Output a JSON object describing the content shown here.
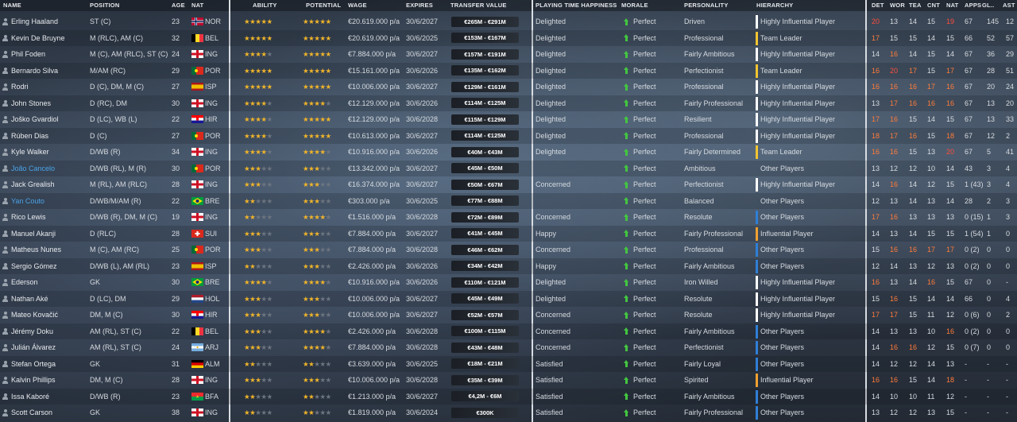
{
  "headers": {
    "name": "NAME",
    "position": "POSITION",
    "age": "AGE",
    "nat": "NAT",
    "ability": "ABILITY",
    "potential": "POTENTIAL",
    "wage": "WAGE",
    "expires": "EXPIRES",
    "transfer_value": "TRANSFER VALUE",
    "playing_time_happiness": "PLAYING TIME HAPPINESS",
    "morale": "MORALE",
    "personality": "PERSONALITY",
    "hierarchy": "HIERARCHY",
    "det": "DET",
    "wor": "WOR",
    "tea": "TEA",
    "cnt": "CNT",
    "nat2": "NAT",
    "apps": "APPS",
    "gls": "GL..",
    "ast": "AST"
  },
  "colors": {
    "star": "#f0b42a",
    "leader": "#f4c430",
    "highly_influential": "#ffffff",
    "influential": "#f0a030",
    "other": "#2f7fd6",
    "good_attr": "#ff7b3a",
    "great_attr": "#ff4e3d",
    "morale_arrow": "#43c640"
  },
  "players": [
    {
      "name": "Erling Haaland",
      "position": "ST (C)",
      "age": "23",
      "nat": "NOR",
      "flag": "nor",
      "ability": 5,
      "potential": 5,
      "wage": "€20.619.000 p/a",
      "expires": "30/6/2027",
      "tv": "€265M - €291M",
      "pth": "Delighted",
      "morale": "Perfect",
      "personality": "Driven",
      "hierarchy": "Highly Influential Player",
      "htype": "highly_influential",
      "det": "20",
      "wor": "13",
      "tea": "14",
      "cnt": "15",
      "nat2": "19",
      "apps": "67",
      "gls": "145",
      "ast": "12",
      "loan": false
    },
    {
      "name": "Kevin De Bruyne",
      "position": "M (RLC), AM (C)",
      "age": "32",
      "nat": "BEL",
      "flag": "bel",
      "ability": 5,
      "potential": 5,
      "wage": "€20.619.000 p/a",
      "expires": "30/6/2025",
      "tv": "€153M - €167M",
      "pth": "Delighted",
      "morale": "Perfect",
      "personality": "Professional",
      "hierarchy": "Team Leader",
      "htype": "leader",
      "det": "17",
      "wor": "15",
      "tea": "15",
      "cnt": "14",
      "nat2": "15",
      "apps": "66",
      "gls": "52",
      "ast": "57",
      "loan": false
    },
    {
      "name": "Phil Foden",
      "position": "M (C), AM (RLC), ST (C)",
      "age": "24",
      "nat": "ING",
      "flag": "eng",
      "ability": 4,
      "potential": 5,
      "wage": "€7.884.000 p/a",
      "expires": "30/6/2027",
      "tv": "€157M - €191M",
      "pth": "Delighted",
      "morale": "Perfect",
      "personality": "Fairly Ambitious",
      "hierarchy": "Highly Influential Player",
      "htype": "highly_influential",
      "det": "14",
      "wor": "16",
      "tea": "14",
      "cnt": "15",
      "nat2": "14",
      "apps": "67",
      "gls": "36",
      "ast": "29",
      "loan": false
    },
    {
      "name": "Bernardo Silva",
      "position": "M/AM (RC)",
      "age": "29",
      "nat": "POR",
      "flag": "por",
      "ability": 5,
      "potential": 5,
      "wage": "€15.161.000 p/a",
      "expires": "30/6/2026",
      "tv": "€135M - €162M",
      "pth": "Delighted",
      "morale": "Perfect",
      "personality": "Perfectionist",
      "hierarchy": "Team Leader",
      "htype": "leader",
      "det": "16",
      "wor": "20",
      "tea": "17",
      "cnt": "15",
      "nat2": "17",
      "apps": "67",
      "gls": "28",
      "ast": "51",
      "loan": false
    },
    {
      "name": "Rodri",
      "position": "D (C), DM, M (C)",
      "age": "27",
      "nat": "ISP",
      "flag": "esp",
      "ability": 5,
      "potential": 5,
      "wage": "€10.006.000 p/a",
      "expires": "30/6/2027",
      "tv": "€129M - €161M",
      "pth": "Delighted",
      "morale": "Perfect",
      "personality": "Professional",
      "hierarchy": "Highly Influential Player",
      "htype": "highly_influential",
      "det": "16",
      "wor": "16",
      "tea": "16",
      "cnt": "17",
      "nat2": "16",
      "apps": "67",
      "gls": "20",
      "ast": "24",
      "loan": false
    },
    {
      "name": "John Stones",
      "position": "D (RC), DM",
      "age": "30",
      "nat": "ING",
      "flag": "eng",
      "ability": 4,
      "potential": 4,
      "wage": "€12.129.000 p/a",
      "expires": "30/6/2026",
      "tv": "€114M - €125M",
      "pth": "Delighted",
      "morale": "Perfect",
      "personality": "Fairly Professional",
      "hierarchy": "Highly Influential Player",
      "htype": "highly_influential",
      "det": "13",
      "wor": "17",
      "tea": "16",
      "cnt": "16",
      "nat2": "16",
      "apps": "67",
      "gls": "13",
      "ast": "20",
      "loan": false
    },
    {
      "name": "Joško Gvardiol",
      "position": "D (LC), WB (L)",
      "age": "22",
      "nat": "HIR",
      "flag": "cro",
      "ability": 4,
      "potential": 5,
      "wage": "€12.129.000 p/a",
      "expires": "30/6/2028",
      "tv": "€115M - €129M",
      "pth": "Delighted",
      "morale": "Perfect",
      "personality": "Resilient",
      "hierarchy": "Highly Influential Player",
      "htype": "highly_influential",
      "det": "17",
      "wor": "16",
      "tea": "15",
      "cnt": "14",
      "nat2": "15",
      "apps": "67",
      "gls": "13",
      "ast": "33",
      "loan": false
    },
    {
      "name": "Rúben Dias",
      "position": "D (C)",
      "age": "27",
      "nat": "POR",
      "flag": "por",
      "ability": 4,
      "potential": 5,
      "wage": "€10.613.000 p/a",
      "expires": "30/6/2027",
      "tv": "€114M - €125M",
      "pth": "Delighted",
      "morale": "Perfect",
      "personality": "Professional",
      "hierarchy": "Highly Influential Player",
      "htype": "highly_influential",
      "det": "18",
      "wor": "17",
      "tea": "16",
      "cnt": "15",
      "nat2": "18",
      "apps": "67",
      "gls": "12",
      "ast": "2",
      "loan": false
    },
    {
      "name": "Kyle Walker",
      "position": "D/WB (R)",
      "age": "34",
      "nat": "ING",
      "flag": "eng",
      "ability": 4,
      "potential": 4,
      "wage": "€10.916.000 p/a",
      "expires": "30/6/2026",
      "tv": "€40M - €43M",
      "pth": "Delighted",
      "morale": "Perfect",
      "personality": "Fairly Determined",
      "hierarchy": "Team Leader",
      "htype": "leader",
      "det": "16",
      "wor": "16",
      "tea": "15",
      "cnt": "13",
      "nat2": "20",
      "apps": "67",
      "gls": "5",
      "ast": "41",
      "loan": false
    },
    {
      "name": "João Cancelo",
      "position": "D/WB (RL), M (R)",
      "age": "30",
      "nat": "POR",
      "flag": "por",
      "ability": 3,
      "potential": 3,
      "wage": "€13.342.000 p/a",
      "expires": "30/6/2027",
      "tv": "€45M - €50M",
      "pth": "",
      "morale": "Perfect",
      "personality": "Ambitious",
      "hierarchy": "Other Players",
      "htype": "none",
      "det": "13",
      "wor": "12",
      "tea": "12",
      "cnt": "10",
      "nat2": "14",
      "apps": "43",
      "gls": "3",
      "ast": "4",
      "loan": true
    },
    {
      "name": "Jack Grealish",
      "position": "M (RL), AM (RLC)",
      "age": "28",
      "nat": "ING",
      "flag": "eng",
      "ability": 3,
      "potential": 3,
      "wage": "€16.374.000 p/a",
      "expires": "30/6/2027",
      "tv": "€50M - €67M",
      "pth": "Concerned",
      "morale": "Perfect",
      "personality": "Perfectionist",
      "hierarchy": "Highly Influential Player",
      "htype": "highly_influential",
      "det": "14",
      "wor": "16",
      "tea": "14",
      "cnt": "12",
      "nat2": "15",
      "apps": "1 (43)",
      "gls": "3",
      "ast": "4",
      "loan": false
    },
    {
      "name": "Yan Couto",
      "position": "D/WB/M/AM (R)",
      "age": "22",
      "nat": "BRE",
      "flag": "bra",
      "ability": 2,
      "potential": 3,
      "wage": "€303.000 p/a",
      "expires": "30/6/2025",
      "tv": "€77M - €88M",
      "pth": "",
      "morale": "Perfect",
      "personality": "Balanced",
      "hierarchy": "Other Players",
      "htype": "none",
      "det": "12",
      "wor": "13",
      "tea": "14",
      "cnt": "13",
      "nat2": "14",
      "apps": "28",
      "gls": "2",
      "ast": "3",
      "loan": true
    },
    {
      "name": "Rico Lewis",
      "position": "D/WB (R), DM, M (C)",
      "age": "19",
      "nat": "ING",
      "flag": "eng",
      "ability": 2,
      "potential": 4,
      "wage": "€1.516.000 p/a",
      "expires": "30/6/2028",
      "tv": "€72M - €89M",
      "pth": "Concerned",
      "morale": "Perfect",
      "personality": "Resolute",
      "hierarchy": "Other Players",
      "htype": "other",
      "det": "17",
      "wor": "16",
      "tea": "13",
      "cnt": "13",
      "nat2": "13",
      "apps": "0 (15)",
      "gls": "1",
      "ast": "3",
      "loan": false
    },
    {
      "name": "Manuel Akanji",
      "position": "D (RLC)",
      "age": "28",
      "nat": "SUI",
      "flag": "sui",
      "ability": 3,
      "potential": 3,
      "wage": "€7.884.000 p/a",
      "expires": "30/6/2027",
      "tv": "€41M - €45M",
      "pth": "Happy",
      "morale": "Perfect",
      "personality": "Fairly Professional",
      "hierarchy": "Influential Player",
      "htype": "influential",
      "det": "14",
      "wor": "13",
      "tea": "14",
      "cnt": "15",
      "nat2": "15",
      "apps": "1 (54)",
      "gls": "1",
      "ast": "0",
      "loan": false
    },
    {
      "name": "Matheus Nunes",
      "position": "M (C), AM (RC)",
      "age": "25",
      "nat": "POR",
      "flag": "por",
      "ability": 3,
      "potential": 3,
      "wage": "€7.884.000 p/a",
      "expires": "30/6/2028",
      "tv": "€46M - €62M",
      "pth": "Concerned",
      "morale": "Perfect",
      "personality": "Professional",
      "hierarchy": "Other Players",
      "htype": "other",
      "det": "15",
      "wor": "16",
      "tea": "16",
      "cnt": "17",
      "nat2": "17",
      "apps": "0 (2)",
      "gls": "0",
      "ast": "0",
      "loan": false
    },
    {
      "name": "Sergio Gómez",
      "position": "D/WB (L), AM (RL)",
      "age": "23",
      "nat": "ISP",
      "flag": "esp",
      "ability": 2,
      "potential": 3,
      "wage": "€2.426.000 p/a",
      "expires": "30/6/2026",
      "tv": "€34M - €42M",
      "pth": "Happy",
      "morale": "Perfect",
      "personality": "Fairly Ambitious",
      "hierarchy": "Other Players",
      "htype": "other",
      "det": "12",
      "wor": "14",
      "tea": "13",
      "cnt": "12",
      "nat2": "13",
      "apps": "0 (2)",
      "gls": "0",
      "ast": "0",
      "loan": false
    },
    {
      "name": "Ederson",
      "position": "GK",
      "age": "30",
      "nat": "BRE",
      "flag": "bra",
      "ability": 4,
      "potential": 4,
      "wage": "€10.916.000 p/a",
      "expires": "30/6/2026",
      "tv": "€110M - €121M",
      "pth": "Delighted",
      "morale": "Perfect",
      "personality": "Iron Willed",
      "hierarchy": "Highly Influential Player",
      "htype": "highly_influential",
      "det": "16",
      "wor": "13",
      "tea": "14",
      "cnt": "16",
      "nat2": "15",
      "apps": "67",
      "gls": "0",
      "ast": "-",
      "loan": false
    },
    {
      "name": "Nathan Aké",
      "position": "D (LC), DM",
      "age": "29",
      "nat": "HOL",
      "flag": "ned",
      "ability": 3,
      "potential": 3,
      "wage": "€10.006.000 p/a",
      "expires": "30/6/2027",
      "tv": "€45M - €49M",
      "pth": "Delighted",
      "morale": "Perfect",
      "personality": "Resolute",
      "hierarchy": "Highly Influential Player",
      "htype": "highly_influential",
      "det": "15",
      "wor": "16",
      "tea": "15",
      "cnt": "14",
      "nat2": "14",
      "apps": "66",
      "gls": "0",
      "ast": "4",
      "loan": false
    },
    {
      "name": "Mateo Kovačić",
      "position": "DM, M (C)",
      "age": "30",
      "nat": "HIR",
      "flag": "cro",
      "ability": 3,
      "potential": 3,
      "wage": "€10.006.000 p/a",
      "expires": "30/6/2027",
      "tv": "€52M - €57M",
      "pth": "Concerned",
      "morale": "Perfect",
      "personality": "Resolute",
      "hierarchy": "Highly Influential Player",
      "htype": "highly_influential",
      "det": "17",
      "wor": "17",
      "tea": "15",
      "cnt": "11",
      "nat2": "12",
      "apps": "0 (6)",
      "gls": "0",
      "ast": "2",
      "loan": false
    },
    {
      "name": "Jérémy Doku",
      "position": "AM (RL), ST (C)",
      "age": "22",
      "nat": "BEL",
      "flag": "bel",
      "ability": 3,
      "potential": 4,
      "wage": "€2.426.000 p/a",
      "expires": "30/6/2028",
      "tv": "€100M - €115M",
      "pth": "Concerned",
      "morale": "Perfect",
      "personality": "Fairly Ambitious",
      "hierarchy": "Other Players",
      "htype": "other",
      "det": "14",
      "wor": "13",
      "tea": "13",
      "cnt": "10",
      "nat2": "16",
      "apps": "0 (2)",
      "gls": "0",
      "ast": "0",
      "loan": false
    },
    {
      "name": "Julián Álvarez",
      "position": "AM (RL), ST (C)",
      "age": "24",
      "nat": "ARJ",
      "flag": "arg",
      "ability": 3,
      "potential": 4,
      "wage": "€7.884.000 p/a",
      "expires": "30/6/2028",
      "tv": "€43M - €48M",
      "pth": "Concerned",
      "morale": "Perfect",
      "personality": "Perfectionist",
      "hierarchy": "Other Players",
      "htype": "other",
      "det": "14",
      "wor": "16",
      "tea": "16",
      "cnt": "12",
      "nat2": "15",
      "apps": "0 (7)",
      "gls": "0",
      "ast": "0",
      "loan": false
    },
    {
      "name": "Stefan Ortega",
      "position": "GK",
      "age": "31",
      "nat": "ALM",
      "flag": "ger",
      "ability": 2,
      "potential": 2,
      "wage": "€3.639.000 p/a",
      "expires": "30/6/2025",
      "tv": "€18M - €21M",
      "pth": "Satisfied",
      "morale": "Perfect",
      "personality": "Fairly Loyal",
      "hierarchy": "Other Players",
      "htype": "other",
      "det": "14",
      "wor": "12",
      "tea": "12",
      "cnt": "14",
      "nat2": "13",
      "apps": "-",
      "gls": "-",
      "ast": "-",
      "loan": false
    },
    {
      "name": "Kalvin Phillips",
      "position": "DM, M (C)",
      "age": "28",
      "nat": "ING",
      "flag": "eng",
      "ability": 3,
      "potential": 3,
      "wage": "€10.006.000 p/a",
      "expires": "30/6/2028",
      "tv": "€35M - €39M",
      "pth": "Satisfied",
      "morale": "Perfect",
      "personality": "Spirited",
      "hierarchy": "Influential Player",
      "htype": "influential",
      "det": "16",
      "wor": "16",
      "tea": "15",
      "cnt": "14",
      "nat2": "18",
      "apps": "-",
      "gls": "-",
      "ast": "-",
      "loan": false
    },
    {
      "name": "Issa Kaboré",
      "position": "D/WB (R)",
      "age": "23",
      "nat": "BFA",
      "flag": "bfa",
      "ability": 2,
      "potential": 2,
      "wage": "€1.213.000 p/a",
      "expires": "30/6/2027",
      "tv": "€4,2M - €6M",
      "pth": "Satisfied",
      "morale": "Perfect",
      "personality": "Fairly Ambitious",
      "hierarchy": "Other Players",
      "htype": "other",
      "det": "14",
      "wor": "10",
      "tea": "10",
      "cnt": "11",
      "nat2": "12",
      "apps": "-",
      "gls": "-",
      "ast": "-",
      "loan": false
    },
    {
      "name": "Scott Carson",
      "position": "GK",
      "age": "38",
      "nat": "ING",
      "flag": "eng",
      "ability": 2,
      "potential": 2,
      "wage": "€1.819.000 p/a",
      "expires": "30/6/2024",
      "tv": "€300K",
      "pth": "Satisfied",
      "morale": "Perfect",
      "personality": "Fairly Professional",
      "hierarchy": "Other Players",
      "htype": "other",
      "det": "13",
      "wor": "12",
      "tea": "12",
      "cnt": "13",
      "nat2": "15",
      "apps": "-",
      "gls": "-",
      "ast": "-",
      "loan": false
    }
  ]
}
